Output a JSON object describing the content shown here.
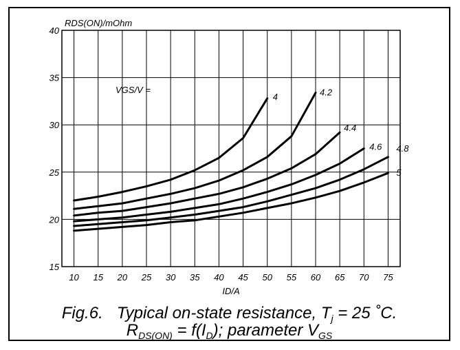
{
  "chart_data": {
    "type": "line",
    "ylabel": "RDS(ON)/mOhm",
    "xlabel": "ID/A",
    "xlim": [
      7.5,
      77.5
    ],
    "ylim": [
      15,
      40
    ],
    "x_ticks": [
      10,
      15,
      20,
      25,
      30,
      35,
      40,
      45,
      50,
      55,
      60,
      65,
      70,
      75
    ],
    "y_ticks": [
      15,
      20,
      25,
      30,
      35,
      40
    ],
    "grid": true,
    "parameter_label": "VGS/V =",
    "series": [
      {
        "name": "4",
        "x": [
          10,
          15,
          20,
          25,
          30,
          35,
          40,
          45,
          50
        ],
        "y": [
          22.0,
          22.4,
          22.9,
          23.5,
          24.2,
          25.2,
          26.5,
          28.6,
          32.8
        ]
      },
      {
        "name": "4.2",
        "x": [
          10,
          15,
          20,
          25,
          30,
          35,
          40,
          45,
          50,
          55,
          60
        ],
        "y": [
          21.1,
          21.4,
          21.7,
          22.2,
          22.7,
          23.3,
          24.1,
          25.2,
          26.6,
          28.8,
          33.4
        ]
      },
      {
        "name": "4.4",
        "x": [
          10,
          15,
          20,
          25,
          30,
          35,
          40,
          45,
          50,
          55,
          60,
          65
        ],
        "y": [
          20.4,
          20.7,
          20.9,
          21.3,
          21.7,
          22.2,
          22.7,
          23.4,
          24.3,
          25.4,
          26.9,
          29.2
        ]
      },
      {
        "name": "4.6",
        "x": [
          10,
          15,
          20,
          25,
          30,
          35,
          40,
          45,
          50,
          55,
          60,
          65,
          70
        ],
        "y": [
          19.8,
          20.0,
          20.2,
          20.5,
          20.8,
          21.2,
          21.6,
          22.2,
          22.9,
          23.7,
          24.7,
          25.9,
          27.5
        ]
      },
      {
        "name": "4.8",
        "x": [
          10,
          15,
          20,
          25,
          30,
          35,
          40,
          45,
          50,
          55,
          60,
          65,
          70,
          75
        ],
        "y": [
          19.3,
          19.5,
          19.7,
          19.9,
          20.2,
          20.5,
          20.9,
          21.3,
          21.9,
          22.6,
          23.3,
          24.2,
          25.3,
          26.6
        ]
      },
      {
        "name": "5",
        "x": [
          10,
          15,
          20,
          25,
          30,
          35,
          40,
          45,
          50,
          55,
          60,
          65,
          70,
          75
        ],
        "y": [
          18.8,
          19.0,
          19.2,
          19.4,
          19.7,
          19.9,
          20.3,
          20.7,
          21.2,
          21.7,
          22.3,
          23.0,
          23.9,
          24.9
        ]
      }
    ]
  },
  "caption": {
    "fig": "Fig.6.",
    "line1_text": "Typical on-state resistance, T",
    "line1_sub": "j",
    "line1_end": " = 25 ˚C.",
    "line2_r": "R",
    "line2_rsub": "DS(ON)",
    "line2_mid": " = f(I",
    "line2_dsub": "D",
    "line2_tail": "); parameter V",
    "line2_vsub": "GS"
  }
}
